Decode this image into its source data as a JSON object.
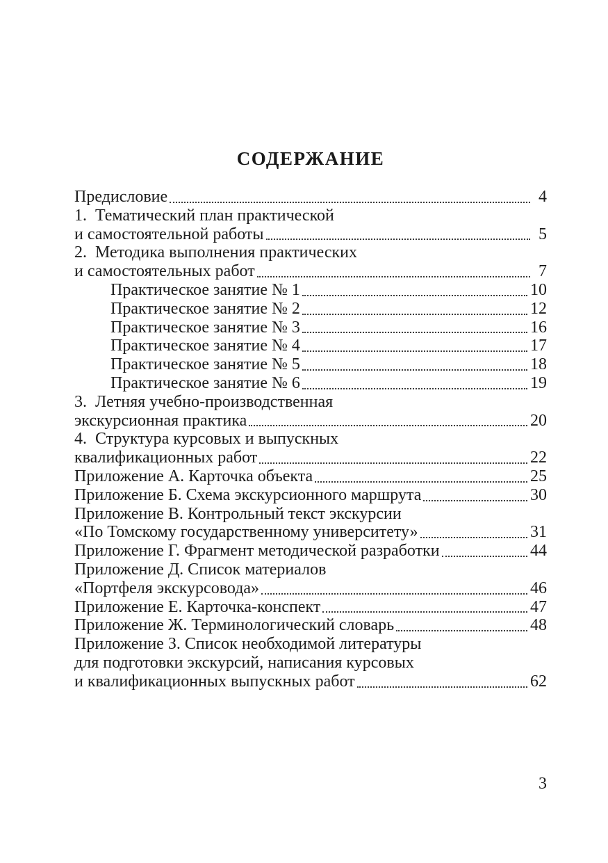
{
  "toc": {
    "title": "СОДЕРЖАНИЕ",
    "rows": [
      {
        "text": "Предисловие",
        "indent": false,
        "page": "4"
      },
      {
        "text": "1.  Тематический план практической",
        "indent": false,
        "page": null
      },
      {
        "text": "и самостоятельной работы",
        "indent": false,
        "page": "5"
      },
      {
        "text": "2.  Методика выполнения практических",
        "indent": false,
        "page": null
      },
      {
        "text": "и самостоятельных работ",
        "indent": false,
        "page": "7"
      },
      {
        "text": "Практическое занятие № 1",
        "indent": true,
        "page": "10"
      },
      {
        "text": "Практическое занятие № 2",
        "indent": true,
        "page": "12"
      },
      {
        "text": "Практическое занятие № 3",
        "indent": true,
        "page": "16"
      },
      {
        "text": "Практическое занятие № 4",
        "indent": true,
        "page": "17"
      },
      {
        "text": "Практическое занятие № 5",
        "indent": true,
        "page": "18"
      },
      {
        "text": "Практическое занятие № 6",
        "indent": true,
        "page": "19"
      },
      {
        "text": "3.  Летняя учебно-производственная",
        "indent": false,
        "page": null
      },
      {
        "text": "экскурсионная практика",
        "indent": false,
        "page": "20"
      },
      {
        "text": "4.  Структура курсовых и выпускных",
        "indent": false,
        "page": null
      },
      {
        "text": "квалификационных работ",
        "indent": false,
        "page": "22"
      },
      {
        "text": "Приложение А. Карточка объекта",
        "indent": false,
        "page": "25"
      },
      {
        "text": "Приложение Б. Схема экскурсионного маршрута",
        "indent": false,
        "page": "30"
      },
      {
        "text": "Приложение В. Контрольный текст экскурсии",
        "indent": false,
        "page": null
      },
      {
        "text": "«По Томскому государственному университету»",
        "indent": false,
        "page": "31"
      },
      {
        "text": "Приложение Г. Фрагмент методической разработки",
        "indent": false,
        "page": "44"
      },
      {
        "text": "Приложение Д. Список материалов",
        "indent": false,
        "page": null
      },
      {
        "text": "«Портфеля экскурсовода»",
        "indent": false,
        "page": "46"
      },
      {
        "text": "Приложение Е. Карточка-конспект",
        "indent": false,
        "page": "47"
      },
      {
        "text": "Приложение Ж. Терминологический словарь",
        "indent": false,
        "page": "48"
      },
      {
        "text": "Приложение З. Список необходимой литературы",
        "indent": false,
        "page": null
      },
      {
        "text": "для подготовки экскурсий, написания курсовых",
        "indent": false,
        "page": null
      },
      {
        "text": "и квалификационных выпускных работ",
        "indent": false,
        "page": "62"
      }
    ]
  },
  "footer": {
    "page_number": "3"
  }
}
